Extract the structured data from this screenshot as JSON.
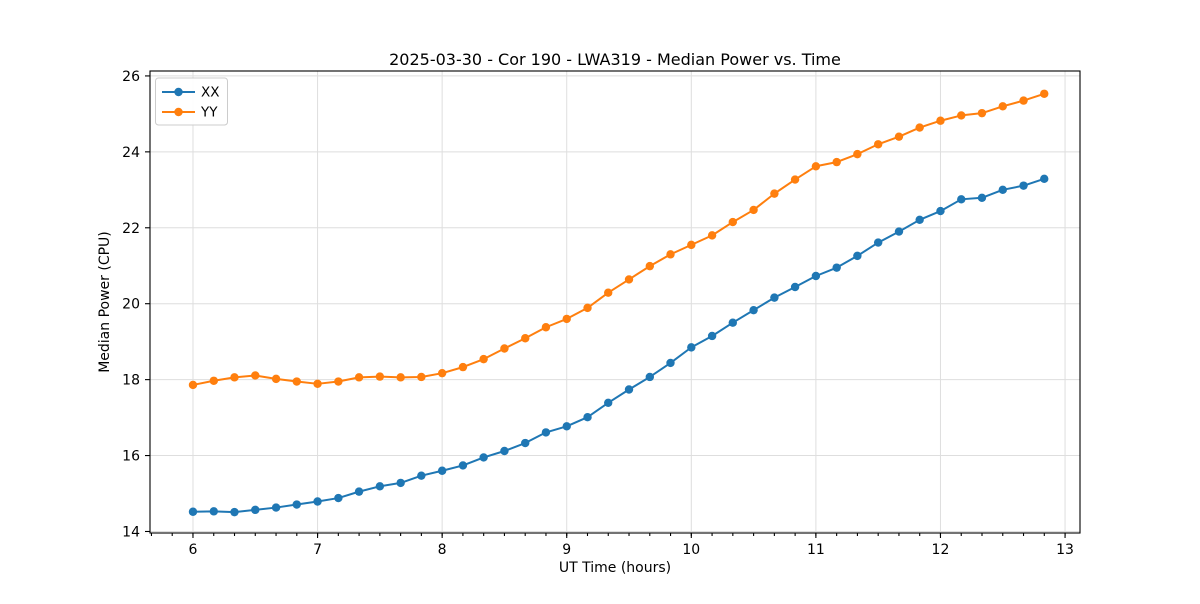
{
  "chart_data": {
    "type": "line",
    "title": "2025-03-30 - Cor 190 - LWA319 - Median Power vs. Time",
    "xlabel": "UT Time (hours)",
    "ylabel": "Median Power (CPU)",
    "xlim": [
      5.655,
      13.12
    ],
    "ylim": [
      13.96,
      26.13
    ],
    "xticks": [
      6,
      7,
      8,
      9,
      10,
      11,
      12,
      13
    ],
    "yticks": [
      14,
      16,
      18,
      20,
      22,
      24,
      26
    ],
    "x_minor_tick_interval": 0.166667,
    "grid": true,
    "legend_position": "upper-left",
    "x": [
      6.0,
      6.167,
      6.333,
      6.5,
      6.667,
      6.833,
      7.0,
      7.167,
      7.333,
      7.5,
      7.667,
      7.833,
      8.0,
      8.167,
      8.333,
      8.5,
      8.667,
      8.833,
      9.0,
      9.167,
      9.333,
      9.5,
      9.667,
      9.833,
      10.0,
      10.167,
      10.333,
      10.5,
      10.667,
      10.833,
      11.0,
      11.167,
      11.333,
      11.5,
      11.667,
      11.833,
      12.0,
      12.167,
      12.333,
      12.5,
      12.667,
      12.833
    ],
    "series": [
      {
        "name": "XX",
        "color": "#1f77b4",
        "marker": "circle",
        "values": [
          14.52,
          14.53,
          14.51,
          14.57,
          14.63,
          14.71,
          14.79,
          14.88,
          15.05,
          15.19,
          15.28,
          15.47,
          15.6,
          15.74,
          15.95,
          16.12,
          16.33,
          16.61,
          16.77,
          17.01,
          17.39,
          17.74,
          18.07,
          18.44,
          18.85,
          19.15,
          19.5,
          19.83,
          20.16,
          20.44,
          20.73,
          20.95,
          21.26,
          21.61,
          21.9,
          22.21,
          22.44,
          22.75,
          22.79,
          23.0,
          23.11,
          23.29
        ]
      },
      {
        "name": "YY",
        "color": "#ff7f0e",
        "marker": "circle",
        "values": [
          17.86,
          17.97,
          18.06,
          18.11,
          18.02,
          17.95,
          17.89,
          17.95,
          18.06,
          18.08,
          18.06,
          18.07,
          18.17,
          18.33,
          18.54,
          18.82,
          19.09,
          19.38,
          19.6,
          19.89,
          20.29,
          20.64,
          20.99,
          21.3,
          21.55,
          21.8,
          22.15,
          22.47,
          22.9,
          23.27,
          23.62,
          23.73,
          23.94,
          24.2,
          24.4,
          24.64,
          24.82,
          24.96,
          25.02,
          25.2,
          25.35,
          25.53
        ]
      }
    ]
  },
  "style": {
    "background": "#ffffff",
    "grid_color": "#dedede",
    "spine_color": "#000000",
    "text_color": "#000000",
    "legend_border_color": "#cccccc"
  }
}
